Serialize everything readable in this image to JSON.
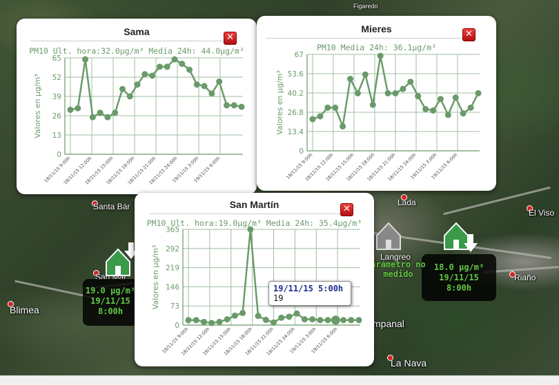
{
  "map": {
    "top_labels": [
      {
        "text": "Figaredo"
      }
    ],
    "towns": [
      {
        "name": "Santa Bár",
        "size": "normal"
      },
      {
        "name": "Lada",
        "size": "normal"
      },
      {
        "name": "El Viso",
        "size": "normal"
      },
      {
        "name": "San Mar",
        "size": "normal"
      },
      {
        "name": "Langreo",
        "size": "normal"
      },
      {
        "name": "Riaño",
        "size": "normal"
      },
      {
        "name": "Blimea",
        "size": "big"
      },
      {
        "name": "mpanal",
        "size": "big"
      },
      {
        "name": "La Nava",
        "size": "big"
      }
    ],
    "station_labels": [
      {
        "lines": [
          "19.0 µg/m³",
          "19/11/15",
          "8:00h"
        ]
      },
      {
        "lines": [
          "18.0 µg/m³",
          "19/11/15",
          "8:00h"
        ]
      },
      {
        "lines": [
          "arámetro no",
          "medido"
        ]
      }
    ],
    "colors": {
      "station_text": "#64c846",
      "marker_green": "#3a9a4a",
      "marker_gray": "#888888"
    }
  },
  "popups": {
    "sama": {
      "title": "Sama",
      "subtitle": "PM10 Ult. hora:32.0µg/m³ Media 24h: 44.0µg/m³",
      "close_label": "✕",
      "chart_data": {
        "type": "line",
        "ylabel": "Valores en µg/m³",
        "yticks": [
          "65",
          "52",
          "39",
          "26",
          "13",
          "0"
        ],
        "ylim": [
          0,
          65
        ],
        "xticks": [
          "18/11/15 9:00h",
          "18/11/15 12:00h",
          "18/11/15 15:00h",
          "18/11/15 18:00h",
          "18/11/15 21:00h",
          "18/11/15 24:00h",
          "19/11/15 3:00h",
          "19/11/15 6:00h"
        ],
        "values": [
          30,
          31,
          64,
          25,
          28,
          25,
          28,
          44,
          39,
          47,
          54,
          53,
          59,
          59,
          64,
          61,
          57,
          47,
          46,
          41,
          49,
          33,
          33,
          32
        ],
        "color": "#6a9a6a",
        "grid": true
      }
    },
    "mieres": {
      "title": "Mieres",
      "subtitle": "PM10 Media 24h: 36.1µg/m³",
      "close_label": "✕",
      "chart_data": {
        "type": "line",
        "ylabel": "Valores en µg/m³",
        "yticks": [
          "67",
          "53.6",
          "40.2",
          "26.8",
          "13.4",
          "0"
        ],
        "ylim": [
          0,
          67
        ],
        "xticks": [
          "18/11/15 9:00h",
          "18/11/15 12:00h",
          "18/11/15 15:00h",
          "18/11/15 18:00h",
          "18/11/15 21:00h",
          "18/11/15 24:00h",
          "19/11/15 3:00h",
          "19/11/15 6:00h"
        ],
        "values": [
          22,
          24,
          30,
          30,
          17,
          50,
          40,
          53,
          32,
          66,
          40,
          40,
          43,
          48,
          38,
          29,
          28,
          36,
          25,
          37,
          26,
          30,
          40
        ],
        "color": "#6a9a6a",
        "grid": true
      }
    },
    "sanmartin": {
      "title": "San Martín",
      "subtitle": "PM10 Ult. hora:19.0µg/m³ Media 24h: 35.4µg/m³",
      "close_label": "✕",
      "tooltip": {
        "line1": "19/11/15 5:00h",
        "line2": "19"
      },
      "chart_data": {
        "type": "line",
        "ylabel": "Valores en µg/m³",
        "yticks": [
          "365",
          "292",
          "219",
          "146",
          "73",
          "0"
        ],
        "ylim": [
          0,
          365
        ],
        "xticks": [
          "18/11/15 9:00h",
          "18/11/15 12:00h",
          "18/11/15 15:00h",
          "18/11/15 18:00h",
          "18/11/15 21:00h",
          "18/11/15 24:00h",
          "19/11/15 3:00h",
          "19/11/15 6:00h"
        ],
        "values": [
          19,
          19,
          12,
          8,
          12,
          22,
          36,
          46,
          365,
          35,
          20,
          10,
          28,
          32,
          44,
          22,
          22,
          19,
          19,
          19,
          19,
          19,
          19
        ],
        "highlight_index": 19,
        "color": "#6a9a6a",
        "grid": true
      }
    }
  }
}
